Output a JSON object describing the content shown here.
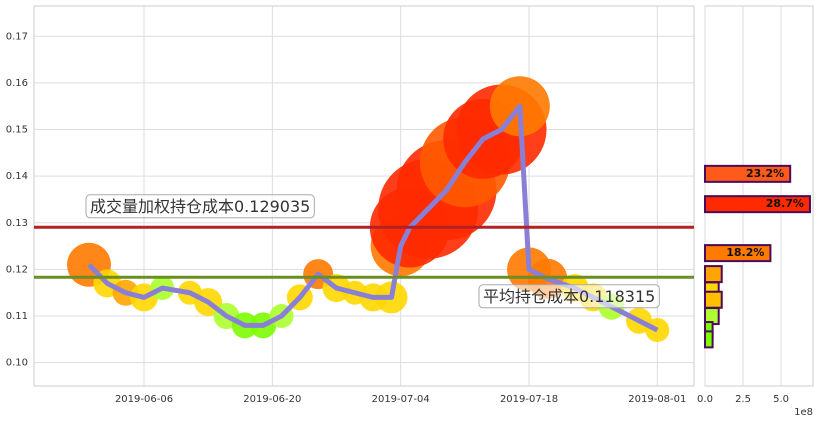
{
  "chart_data": [
    {
      "type": "line",
      "x": [
        "2019-05-31",
        "2019-06-02",
        "2019-06-04",
        "2019-06-06",
        "2019-06-08",
        "2019-06-11",
        "2019-06-13",
        "2019-06-15",
        "2019-06-17",
        "2019-06-19",
        "2019-06-21",
        "2019-06-23",
        "2019-06-25",
        "2019-06-27",
        "2019-06-29",
        "2019-07-01",
        "2019-07-03",
        "2019-07-04",
        "2019-07-05",
        "2019-07-07",
        "2019-07-09",
        "2019-07-11",
        "2019-07-13",
        "2019-07-15",
        "2019-07-17",
        "2019-07-18",
        "2019-07-20",
        "2019-07-23",
        "2019-07-25",
        "2019-07-27",
        "2019-07-30",
        "2019-08-01"
      ],
      "values": [
        0.121,
        0.117,
        0.115,
        0.114,
        0.116,
        0.115,
        0.113,
        0.11,
        0.108,
        0.108,
        0.11,
        0.114,
        0.119,
        0.116,
        0.115,
        0.114,
        0.114,
        0.125,
        0.129,
        0.133,
        0.137,
        0.143,
        0.148,
        0.15,
        0.155,
        0.12,
        0.118,
        0.116,
        0.114,
        0.112,
        0.109,
        0.107
      ],
      "sizes": [
        22,
        14,
        13,
        14,
        12,
        12,
        14,
        13,
        13,
        13,
        12,
        13,
        15,
        14,
        12,
        14,
        16,
        30,
        40,
        50,
        50,
        45,
        40,
        45,
        30,
        22,
        20,
        14,
        14,
        13,
        13,
        12
      ],
      "bubble_colors": [
        "#ff7a00",
        "#ffd700",
        "#ffa500",
        "#ffd700",
        "#adff2f",
        "#ffd700",
        "#ffd700",
        "#adff2f",
        "#7cfc00",
        "#7cfc00",
        "#adff2f",
        "#ffd700",
        "#ff7a00",
        "#ffd700",
        "#ffd700",
        "#ffd700",
        "#ffd700",
        "#ff7a00",
        "#ff2a00",
        "#ff2a00",
        "#ff2a00",
        "#ff5a00",
        "#ff2a00",
        "#ff2a00",
        "#ff7a00",
        "#ff7a00",
        "#ff7a00",
        "#ffd700",
        "#ffd700",
        "#adff2f",
        "#ffd700",
        "#ffd700"
      ],
      "color": "#8a7fd6",
      "xlim": [
        "2019-05-25",
        "2019-08-05"
      ],
      "xticks": [
        "2019-06-06",
        "2019-06-20",
        "2019-07-04",
        "2019-07-18",
        "2019-08-01"
      ],
      "ylim": [
        0.095,
        0.1765
      ],
      "yticks": [
        {
          "value": 0.1,
          "label": "0.10"
        },
        0.11,
        0.12,
        0.13,
        0.14,
        0.15,
        0.16,
        0.17
      ],
      "grid": true,
      "hlines": [
        {
          "value": 0.129035,
          "label": "成交量加权持仓成本0.129035",
          "color": "#b22222"
        },
        {
          "value": 0.118315,
          "label": "平均持仓成本0.118315",
          "color": "#6b8e23"
        }
      ]
    },
    {
      "type": "barh",
      "y": [
        0.1405,
        0.134,
        0.1235,
        0.119,
        0.1155,
        0.1135,
        0.11,
        0.107,
        0.105
      ],
      "values": [
        5.6,
        6.9,
        4.3,
        1.1,
        0.9,
        1.1,
        0.9,
        0.5,
        0.5
      ],
      "value_labels": [
        "23.2%",
        "28.7%",
        "18.2%",
        null,
        null,
        null,
        null,
        null,
        null
      ],
      "colors": [
        "#ff5a1a",
        "#ff2a00",
        "#ff7a00",
        "#ffa500",
        "#ffd700",
        "#ffc000",
        "#adff2f",
        "#7cfc00",
        "#7cfc00"
      ],
      "edgecolor": "#4b0a5a",
      "xlim": [
        0,
        7.1
      ],
      "xticks": [
        {
          "value": 0,
          "label": "0.0"
        },
        {
          "value": 2.5,
          "label": "2.5"
        },
        {
          "value": 5,
          "label": "5.0"
        }
      ],
      "ylim": [
        0.095,
        0.1765
      ],
      "x_offset_label": "1e8"
    }
  ]
}
